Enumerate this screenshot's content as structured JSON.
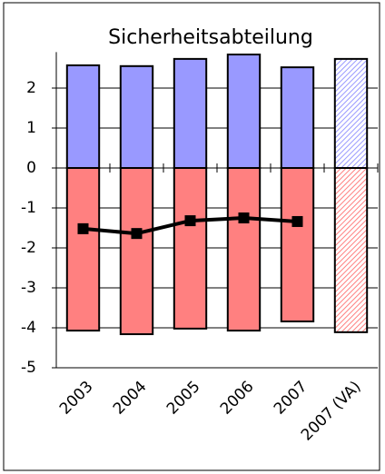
{
  "chart_data": {
    "type": "bar",
    "title": "Sicherheitsabteilung",
    "categories": [
      "2003",
      "2004",
      "2005",
      "2006",
      "2007",
      "2007 (VA)"
    ],
    "series": [
      {
        "color": "#9999ff",
        "values": [
          2.57,
          2.55,
          2.73,
          2.84,
          2.52,
          2.73
        ]
      },
      {
        "color": "#ff8080",
        "values": [
          -4.07,
          -4.16,
          -4.02,
          -4.07,
          -3.84,
          -4.11
        ]
      },
      {
        "type": "line",
        "color": "#000000",
        "values": [
          -1.52,
          -1.64,
          -1.32,
          -1.25,
          -1.34,
          null
        ]
      }
    ],
    "hatched": [
      5
    ],
    "ylim": [
      -5,
      2.9
    ],
    "yticks": [
      -5,
      -4,
      -3,
      -2,
      -1,
      0,
      1,
      2
    ],
    "grid": true
  }
}
